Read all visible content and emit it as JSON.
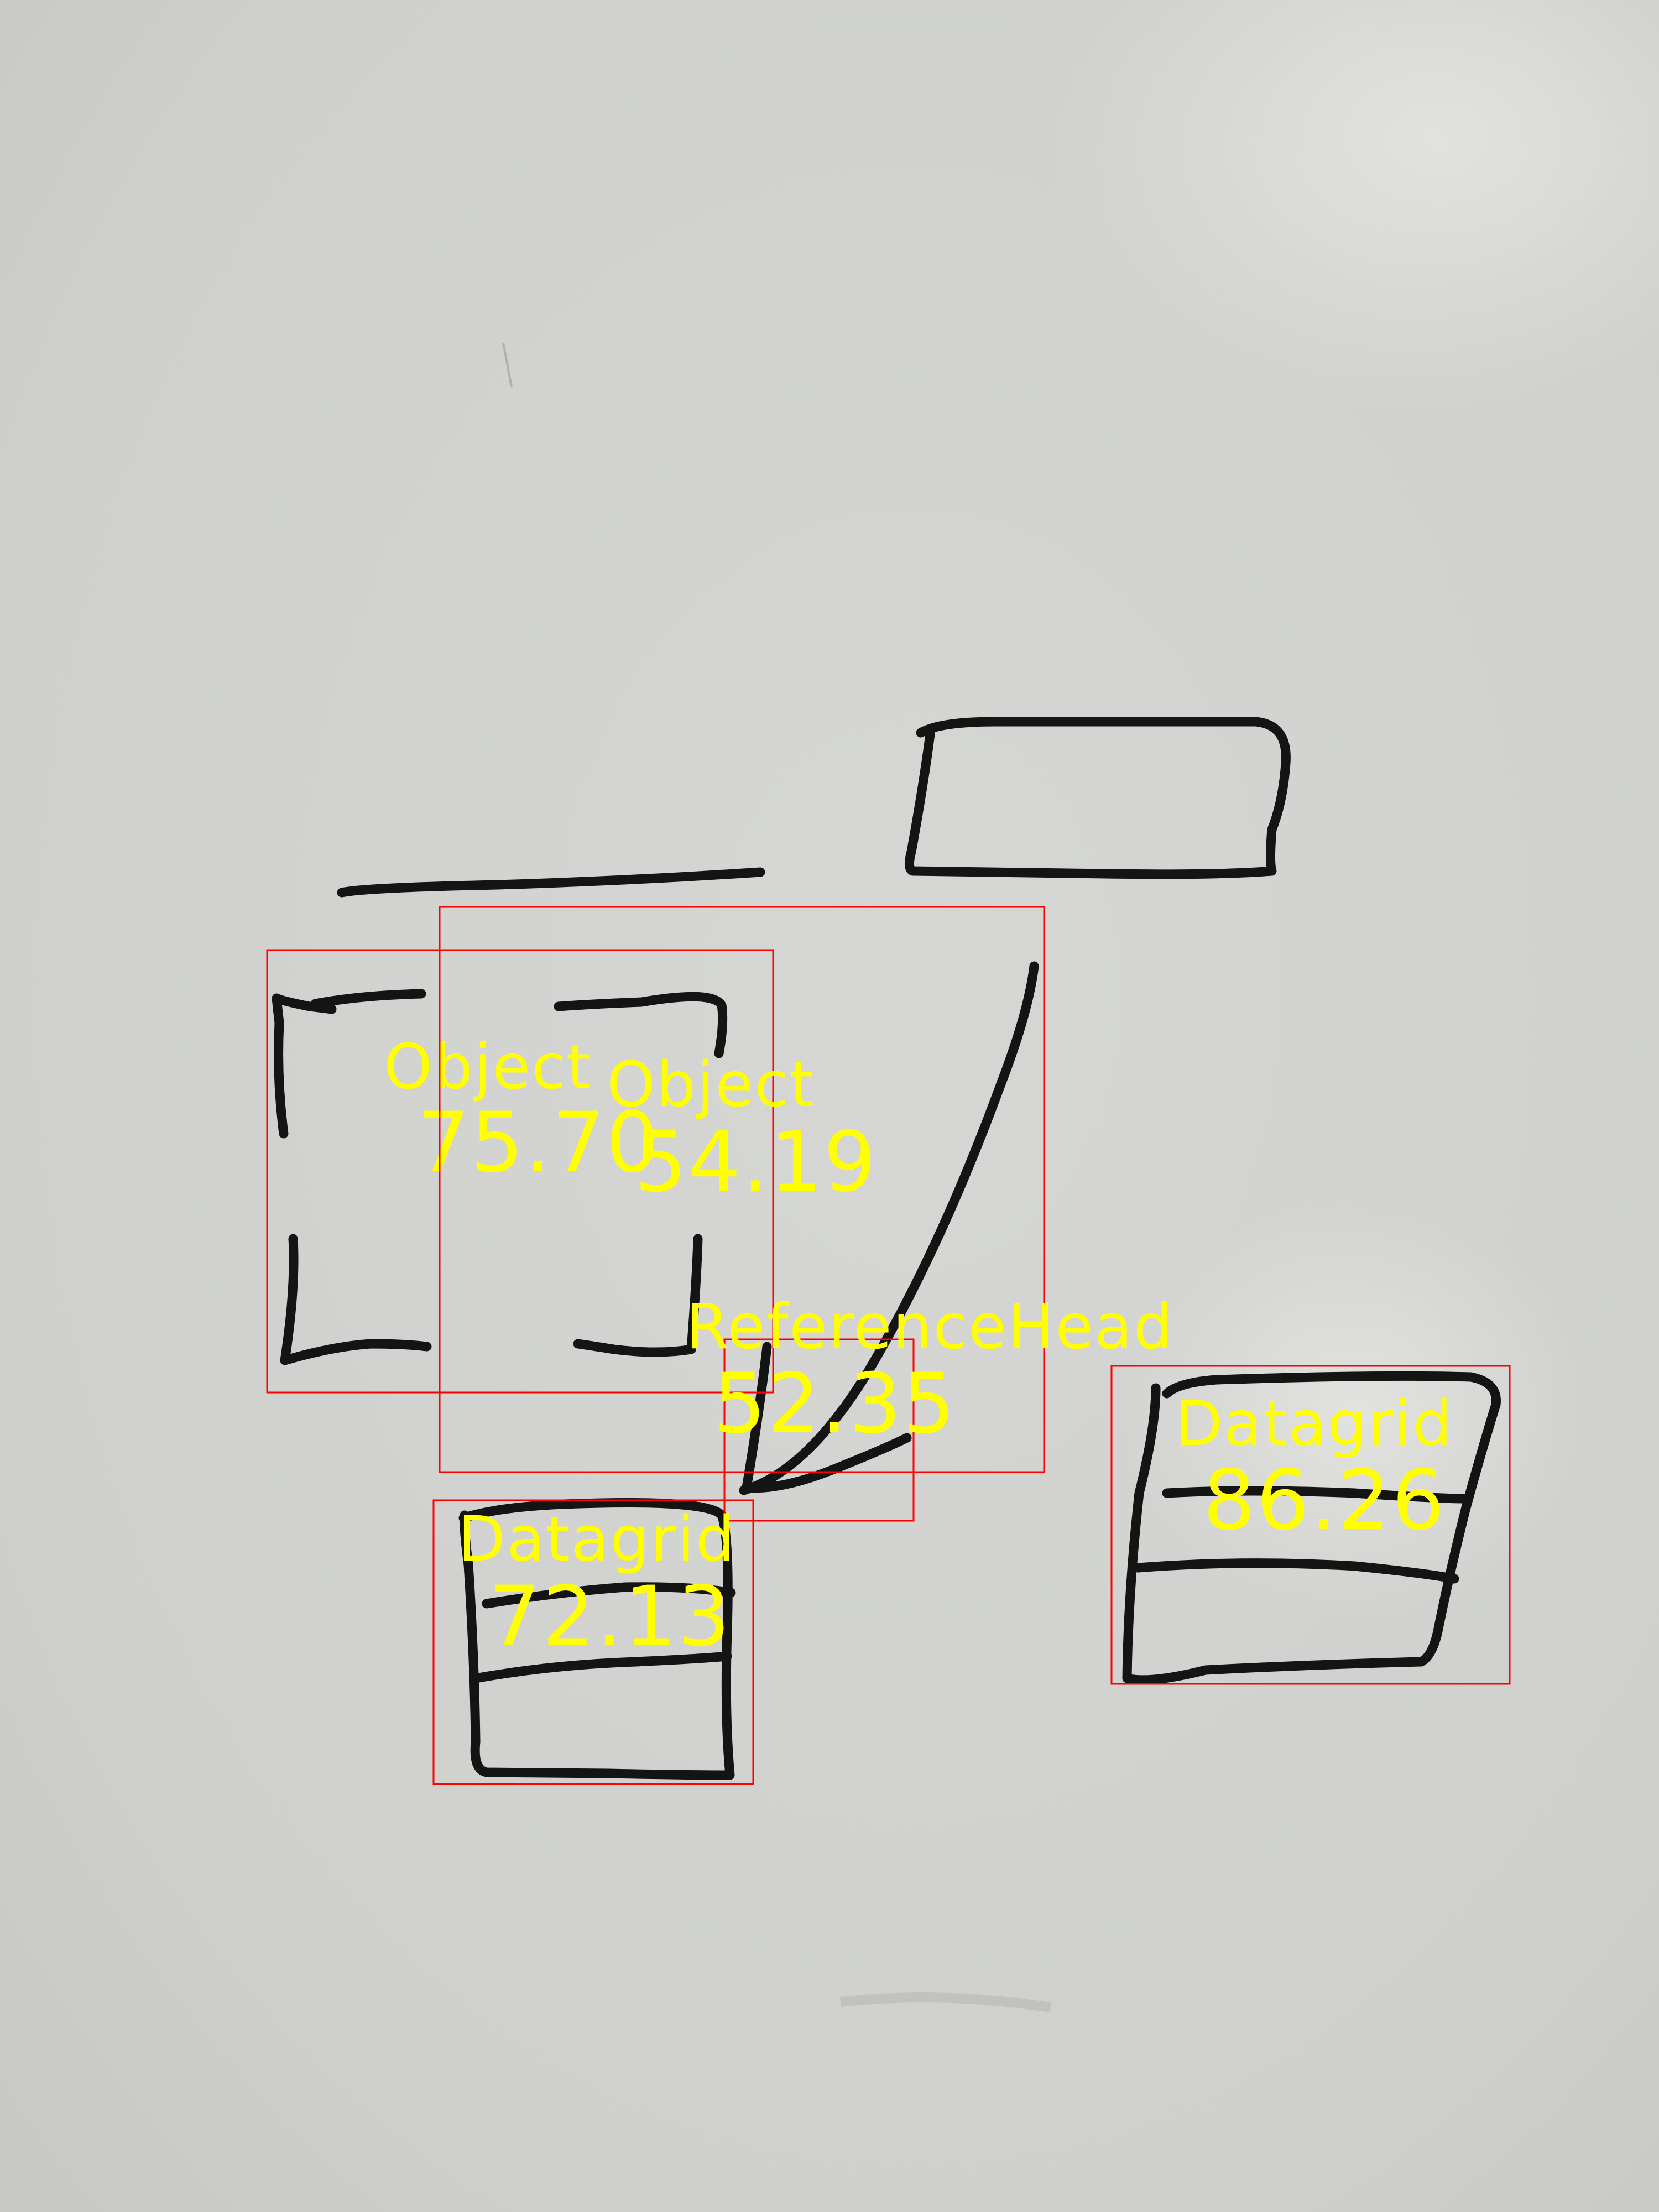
{
  "image": {
    "background_color": "#d2d3d0",
    "ink_color": "#141414"
  },
  "detections": [
    {
      "label": "Object",
      "score": "75.70",
      "box_color": "#ff0000",
      "text_color": "#ffff00"
    },
    {
      "label": "Object",
      "score": "54.19",
      "box_color": "#ff0000",
      "text_color": "#ffff00"
    },
    {
      "label": "ReferenceHead",
      "score": "52.35",
      "box_color": "#ff0000",
      "text_color": "#ffff00"
    },
    {
      "label": "Datagrid",
      "score": "72.13",
      "box_color": "#ff0000",
      "text_color": "#ffff00"
    },
    {
      "label": "Datagrid",
      "score": "86.26",
      "box_color": "#ff0000",
      "text_color": "#ffff00"
    }
  ]
}
